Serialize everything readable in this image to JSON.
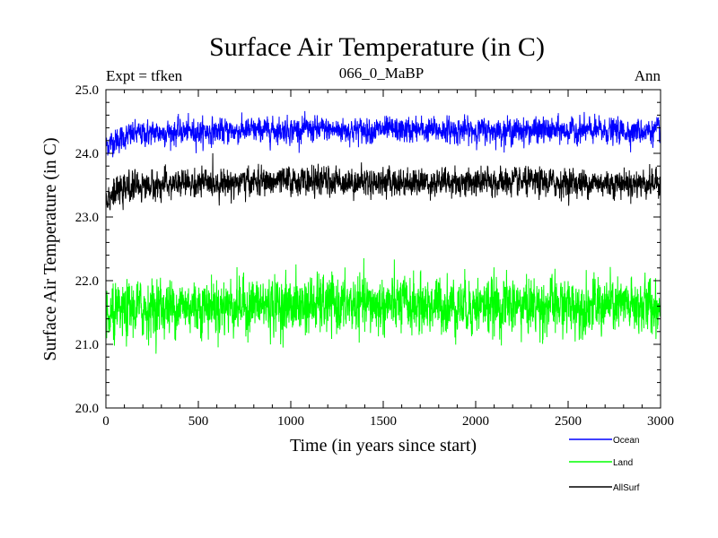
{
  "chart_data": {
    "type": "line",
    "title": "Surface Air Temperature (in C)",
    "subtitle_left": "Expt = tfken",
    "subtitle_center": "066_0_MaBP",
    "subtitle_right": "Ann",
    "xlabel": "Time (in years since start)",
    "ylabel": "Surface Air Temperature (in C)",
    "xlim": [
      0,
      3000
    ],
    "ylim": [
      20.0,
      25.0
    ],
    "x_ticks": [
      "0",
      "500",
      "1000",
      "1500",
      "2000",
      "2500",
      "3000"
    ],
    "y_ticks": [
      "20.0",
      "21.0",
      "22.0",
      "23.0",
      "24.0",
      "25.0"
    ],
    "grid": false,
    "legend_position": "bottom-right, below plot",
    "series": [
      {
        "name": "Ocean",
        "color": "#0000ff",
        "mean": 24.35,
        "noise_std": 0.09,
        "anchors": [
          [
            0,
            24.12
          ],
          [
            50,
            24.2
          ],
          [
            150,
            24.3
          ],
          [
            300,
            24.33
          ],
          [
            1000,
            24.37
          ],
          [
            3000,
            24.35
          ]
        ]
      },
      {
        "name": "Land",
        "color": "#00ff00",
        "mean": 21.6,
        "noise_std": 0.2,
        "anchors": [
          [
            0,
            21.35
          ],
          [
            50,
            21.45
          ],
          [
            150,
            21.55
          ],
          [
            400,
            21.6
          ],
          [
            1000,
            21.62
          ],
          [
            3000,
            21.6
          ]
        ]
      },
      {
        "name": "AllSurf",
        "color": "#000000",
        "mean": 23.53,
        "noise_std": 0.1,
        "anchors": [
          [
            0,
            23.3
          ],
          [
            50,
            23.38
          ],
          [
            150,
            23.48
          ],
          [
            400,
            23.52
          ],
          [
            1000,
            23.56
          ],
          [
            3000,
            23.53
          ]
        ]
      }
    ]
  }
}
